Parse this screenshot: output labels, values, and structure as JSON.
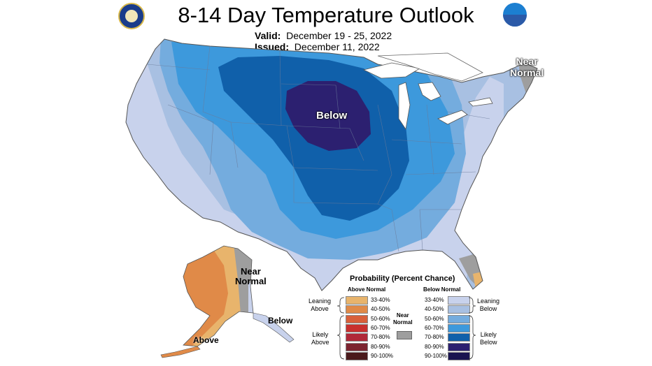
{
  "title": "8-14 Day Temperature Outlook",
  "valid_label": "Valid:",
  "valid_dates": "December 19 - 25, 2022",
  "issued_label": "Issued:",
  "issued_date": "December 11, 2022",
  "map_labels": {
    "below_conus": "Below",
    "near_normal_ne_1": "Near",
    "near_normal_ne_2": "Normal",
    "near_normal_ak_1": "Near",
    "near_normal_ak_2": "Normal",
    "below_ak": "Below",
    "above_ak": "Above"
  },
  "legend": {
    "title": "Probability (Percent Chance)",
    "above_header": "Above Normal",
    "below_header": "Below Normal",
    "near_1": "Near",
    "near_2": "Normal",
    "leaning_above_1": "Leaning",
    "leaning_above_2": "Above",
    "likely_above_1": "Likely",
    "likely_above_2": "Above",
    "leaning_below_1": "Leaning",
    "leaning_below_2": "Below",
    "likely_below_1": "Likely",
    "likely_below_2": "Below",
    "above_rows": [
      {
        "label": "33-40%",
        "color": "#e8b46c"
      },
      {
        "label": "40-50%",
        "color": "#e08a48"
      },
      {
        "label": "50-60%",
        "color": "#d8603a"
      },
      {
        "label": "60-70%",
        "color": "#c8302e"
      },
      {
        "label": "70-80%",
        "color": "#b02838"
      },
      {
        "label": "80-90%",
        "color": "#7c2430"
      },
      {
        "label": "90-100%",
        "color": "#4a1a1c"
      }
    ],
    "below_rows": [
      {
        "label": "33-40%",
        "color": "#c8d2ec"
      },
      {
        "label": "40-50%",
        "color": "#a8c0e2"
      },
      {
        "label": "50-60%",
        "color": "#74acde"
      },
      {
        "label": "60-70%",
        "color": "#3d99dc"
      },
      {
        "label": "70-80%",
        "color": "#1060aa"
      },
      {
        "label": "80-90%",
        "color": "#2c2070"
      },
      {
        "label": "90-100%",
        "color": "#1a1450"
      }
    ]
  },
  "colors": {
    "below_33_40": "#c8d2ec",
    "below_40_50": "#a8c0e2",
    "below_50_60": "#74acde",
    "below_60_70": "#3d99dc",
    "below_70_80": "#1060aa",
    "below_80_90": "#2c2070",
    "above_33_40": "#e8b46c",
    "above_40_50": "#e08a48",
    "near_normal": "#9e9e9e"
  }
}
